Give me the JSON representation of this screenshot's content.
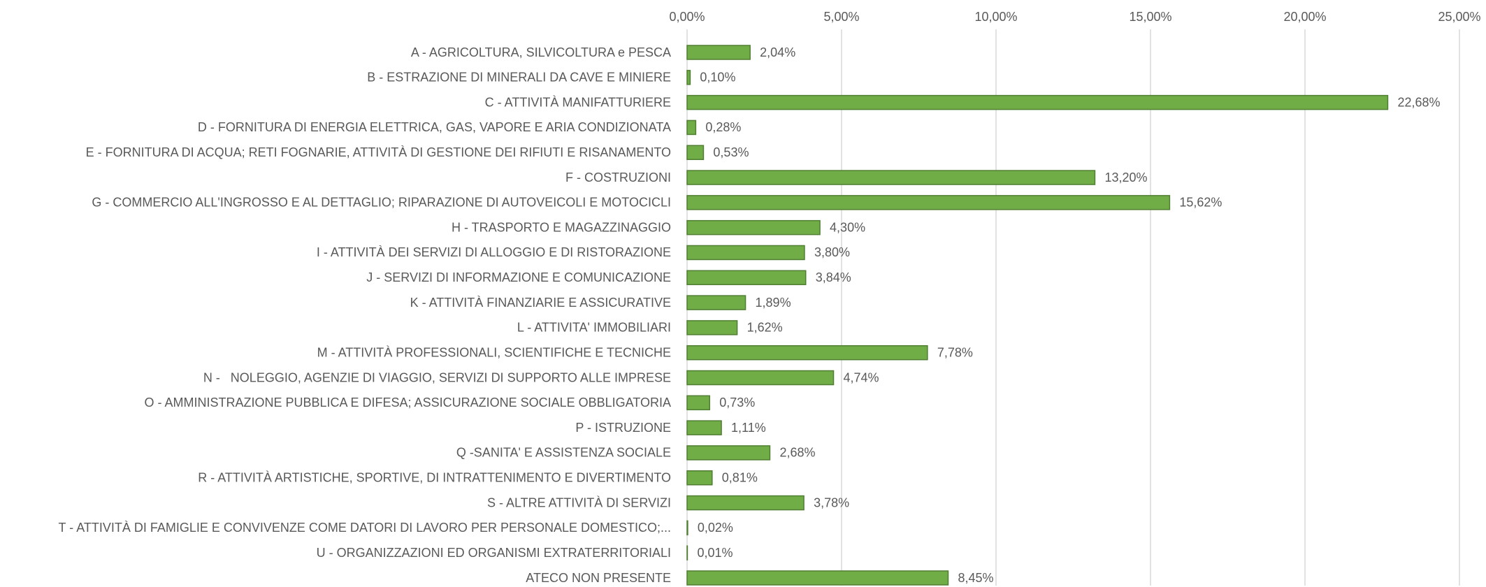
{
  "chart_data": {
    "type": "hbar",
    "categories": [
      "A - AGRICOLTURA, SILVICOLTURA e PESCA",
      "B - ESTRAZIONE DI MINERALI DA CAVE E MINIERE",
      "C - ATTIVITÀ MANIFATTURIERE",
      "D - FORNITURA DI ENERGIA ELETTRICA, GAS, VAPORE E ARIA CONDIZIONATA",
      "E - FORNITURA DI ACQUA; RETI FOGNARIE, ATTIVITÀ DI GESTIONE DEI RIFIUTI E RISANAMENTO",
      "F - COSTRUZIONI",
      "G - COMMERCIO ALL'INGROSSO E AL DETTAGLIO; RIPARAZIONE DI AUTOVEICOLI E MOTOCICLI",
      "H - TRASPORTO E MAGAZZINAGGIO",
      "I - ATTIVITÀ DEI SERVIZI DI ALLOGGIO E DI RISTORAZIONE",
      "J - SERVIZI DI INFORMAZIONE E COMUNICAZIONE",
      "K - ATTIVITÀ FINANZIARIE E ASSICURATIVE",
      "L - ATTIVITA' IMMOBILIARI",
      "M - ATTIVITÀ PROFESSIONALI, SCIENTIFICHE E TECNICHE",
      "N -   NOLEGGIO, AGENZIE DI VIAGGIO, SERVIZI DI SUPPORTO ALLE IMPRESE",
      "O - AMMINISTRAZIONE PUBBLICA E DIFESA; ASSICURAZIONE SOCIALE OBBLIGATORIA",
      "P - ISTRUZIONE",
      "Q -SANITA' E ASSISTENZA SOCIALE",
      "R - ATTIVITÀ ARTISTICHE, SPORTIVE, DI INTRATTENIMENTO E DIVERTIMENTO",
      "S - ALTRE ATTIVITÀ DI SERVIZI",
      "T - ATTIVITÀ DI FAMIGLIE E CONVIVENZE COME DATORI DI LAVORO PER PERSONALE DOMESTICO;...",
      "U - ORGANIZZAZIONI ED ORGANISMI EXTRATERRITORIALI",
      "ATECO NON PRESENTE"
    ],
    "values": [
      2.04,
      0.1,
      22.68,
      0.28,
      0.53,
      13.2,
      15.62,
      4.3,
      3.8,
      3.84,
      1.89,
      1.62,
      7.78,
      4.74,
      0.73,
      1.11,
      2.68,
      0.81,
      3.78,
      0.02,
      0.01,
      8.45
    ],
    "value_labels": [
      "2,04%",
      "0,10%",
      "22,68%",
      "0,28%",
      "0,53%",
      "13,20%",
      "15,62%",
      "4,30%",
      "3,80%",
      "3,84%",
      "1,89%",
      "1,62%",
      "7,78%",
      "4,74%",
      "0,73%",
      "1,11%",
      "2,68%",
      "0,81%",
      "3,78%",
      "0,02%",
      "0,01%",
      "8,45%"
    ],
    "color": "#70ad47",
    "xlim": [
      0,
      25
    ],
    "xticks": [
      {
        "value": 0,
        "label": "0,00%"
      },
      {
        "value": 5,
        "label": "5,00%"
      },
      {
        "value": 10,
        "label": "10,00%"
      },
      {
        "value": 15,
        "label": "15,00%"
      },
      {
        "value": 20,
        "label": "20,00%"
      },
      {
        "value": 25,
        "label": "25,00%"
      }
    ],
    "grid": true
  }
}
